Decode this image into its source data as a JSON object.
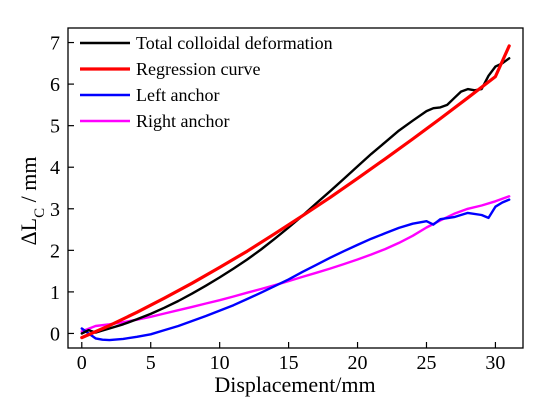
{
  "chart_data": {
    "type": "line",
    "xlabel": "Displacement/mm",
    "ylabel": {
      "prefix": "ΔL",
      "subscript": "C",
      "suffix": " / mm"
    },
    "xlim": [
      -1,
      32
    ],
    "ylim": [
      -0.35,
      7.35
    ],
    "xticks": [
      "0",
      "5",
      "10",
      "15",
      "20",
      "25",
      "30"
    ],
    "yticks": [
      "0",
      "1",
      "2",
      "3",
      "4",
      "5",
      "6",
      "7"
    ],
    "grid": false,
    "legend_position": "top-left",
    "series": [
      {
        "name": "Total colloidal deformation",
        "color": "#000000",
        "x": [
          0,
          0.5,
          1,
          1.5,
          2,
          3,
          4,
          5,
          6,
          7,
          8,
          9,
          10,
          11,
          12,
          13,
          14,
          15,
          16,
          17,
          18,
          19,
          20,
          21,
          22,
          23,
          24,
          25,
          25.5,
          26,
          26.5,
          27,
          27.5,
          28,
          28.5,
          29,
          29.5,
          30,
          30.5,
          31
        ],
        "y": [
          0.0,
          0.08,
          0.02,
          0.07,
          0.12,
          0.22,
          0.34,
          0.47,
          0.62,
          0.78,
          0.96,
          1.15,
          1.35,
          1.56,
          1.78,
          2.02,
          2.28,
          2.55,
          2.83,
          3.13,
          3.42,
          3.72,
          4.02,
          4.32,
          4.6,
          4.88,
          5.12,
          5.35,
          5.42,
          5.44,
          5.5,
          5.66,
          5.82,
          5.88,
          5.85,
          5.88,
          6.2,
          6.42,
          6.5,
          6.62
        ]
      },
      {
        "name": "Regression curve",
        "color": "#ff0000",
        "x": [
          0,
          2,
          4,
          6,
          8,
          10,
          12,
          14,
          16,
          18,
          20,
          22,
          24,
          26,
          28,
          30,
          31
        ],
        "y": [
          -0.1,
          0.19,
          0.51,
          0.85,
          1.21,
          1.59,
          1.98,
          2.4,
          2.83,
          3.27,
          3.73,
          4.2,
          4.68,
          5.17,
          5.67,
          6.18,
          6.92
        ]
      },
      {
        "name": "Left anchor",
        "color": "#0000ff",
        "x": [
          0,
          0.5,
          1,
          1.5,
          2,
          3,
          4,
          5,
          6,
          7,
          8,
          9,
          10,
          11,
          12,
          13,
          14,
          15,
          16,
          17,
          18,
          19,
          20,
          21,
          22,
          23,
          24,
          25,
          25.5,
          26,
          27,
          28,
          29,
          29.5,
          30,
          30.5,
          31
        ],
        "y": [
          0.12,
          0.0,
          -0.12,
          -0.15,
          -0.16,
          -0.13,
          -0.08,
          -0.02,
          0.08,
          0.18,
          0.3,
          0.42,
          0.55,
          0.68,
          0.83,
          0.98,
          1.14,
          1.3,
          1.48,
          1.65,
          1.82,
          1.98,
          2.13,
          2.28,
          2.41,
          2.54,
          2.64,
          2.7,
          2.62,
          2.75,
          2.8,
          2.9,
          2.85,
          2.78,
          3.05,
          3.15,
          3.22
        ]
      },
      {
        "name": "Right anchor",
        "color": "#ff00ff",
        "x": [
          0,
          1,
          2,
          3,
          4,
          5,
          6,
          7,
          8,
          9,
          10,
          11,
          12,
          13,
          14,
          15,
          16,
          17,
          18,
          19,
          20,
          21,
          22,
          23,
          24,
          25,
          26,
          27,
          28,
          29,
          30,
          31
        ],
        "y": [
          0.05,
          0.18,
          0.22,
          0.27,
          0.33,
          0.4,
          0.48,
          0.56,
          0.64,
          0.72,
          0.8,
          0.89,
          0.98,
          1.07,
          1.16,
          1.26,
          1.36,
          1.46,
          1.56,
          1.67,
          1.78,
          1.9,
          2.03,
          2.18,
          2.35,
          2.55,
          2.72,
          2.88,
          3.0,
          3.08,
          3.18,
          3.3
        ]
      }
    ]
  }
}
